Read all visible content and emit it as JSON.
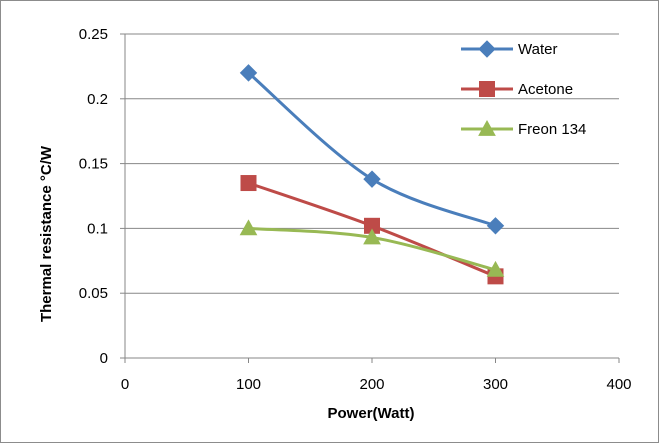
{
  "chart_data": {
    "type": "line",
    "title": "",
    "xlabel": "Power(Watt)",
    "ylabel": "Thermal resistance °C/W",
    "xlim": [
      0,
      400
    ],
    "ylim": [
      0,
      0.25
    ],
    "x_ticks": [
      0,
      100,
      200,
      300,
      400
    ],
    "x_tick_labels": [
      "0",
      "100",
      "200",
      "300",
      "400"
    ],
    "y_ticks": [
      0,
      0.05,
      0.1,
      0.15,
      0.2,
      0.25
    ],
    "y_tick_labels": [
      "0",
      "0.05",
      "0.1",
      "0.15",
      "0.2",
      "0.25"
    ],
    "grid": {
      "horizontal": true,
      "vertical": false
    },
    "legend_position": "top-right",
    "smooth": true,
    "series": [
      {
        "name": "Water",
        "color": "#4a7ebb",
        "marker": "diamond",
        "x": [
          100,
          200,
          300
        ],
        "y": [
          0.22,
          0.138,
          0.102
        ]
      },
      {
        "name": "Acetone",
        "color": "#be4b48",
        "marker": "square",
        "x": [
          100,
          200,
          300
        ],
        "y": [
          0.135,
          0.102,
          0.063
        ]
      },
      {
        "name": "Freon 134",
        "color": "#98b954",
        "marker": "triangle",
        "x": [
          100,
          200,
          300
        ],
        "y": [
          0.1,
          0.093,
          0.068
        ]
      }
    ]
  }
}
